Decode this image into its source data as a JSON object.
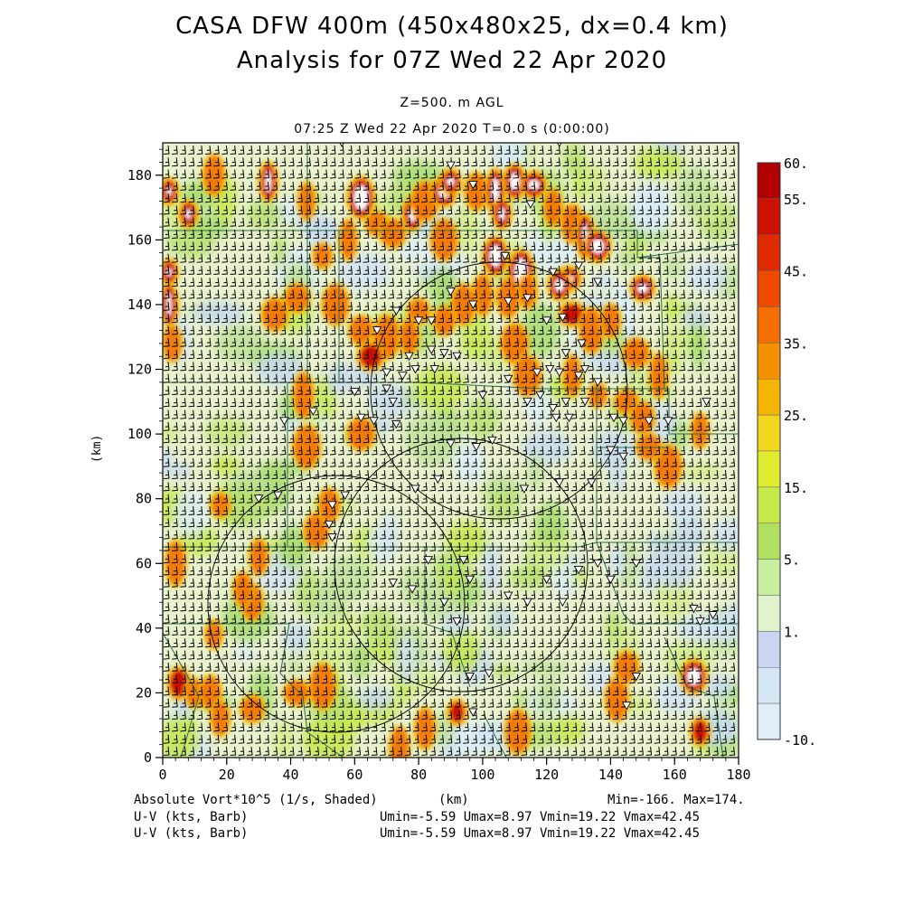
{
  "title_line1": "CASA DFW 400m (450x480x25, dx=0.4 km)",
  "title_line2": "Analysis for 07Z Wed 22 Apr 2020",
  "subtitle_level": "Z=500. m AGL",
  "subtitle_time": "07:25 Z Wed 22 Apr 2020   T=0.0 s (0:00:00)",
  "x_axis": {
    "label": "(km)",
    "min": 0,
    "max": 180,
    "ticks": [
      "0",
      "20",
      "40",
      "60",
      "80",
      "100",
      "120",
      "140",
      "160",
      "180"
    ]
  },
  "y_axis": {
    "label": "(km)",
    "min": 0,
    "max": 190,
    "ticks": [
      "0",
      "20",
      "40",
      "60",
      "80",
      "100",
      "120",
      "140",
      "160",
      "180"
    ]
  },
  "colorbar": {
    "labels": [
      "60.",
      "55.",
      "45.",
      "35.",
      "25.",
      "15.",
      "5.",
      "1.",
      "-10."
    ],
    "colors": [
      "#b00000",
      "#cc1100",
      "#e02a00",
      "#ee4a00",
      "#f46e00",
      "#f59100",
      "#f5b400",
      "#f2d61e",
      "#e0ec30",
      "#c6e84a",
      "#b0e060",
      "#c8eea0",
      "#dff3cc",
      "#c8d6f2",
      "#d4e6f4",
      "#e0eef8"
    ]
  },
  "footer": {
    "field_label": "Absolute Vort*10^5 (1/s, Shaded)",
    "x_unit": "(km)",
    "minmax": "Min=-166. Max=174.",
    "barb_label_1": "U-V (kts, Barb)",
    "barb_label_2": "U-V (kts, Barb)",
    "uv_stats_1": "Umin=-5.59 Umax=8.97 Vmin=19.22 Vmax=42.45",
    "uv_stats_2": "Umin=-5.59 Umax=8.97 Vmin=19.22 Vmax=42.45"
  },
  "map_layers": {
    "field": "absolute vorticity shaded",
    "overlays": [
      "wind barbs",
      "county boundaries",
      "radar range rings",
      "radar station markers"
    ]
  }
}
